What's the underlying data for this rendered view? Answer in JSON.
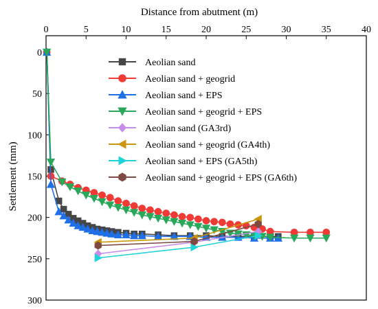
{
  "chart_data": {
    "type": "line",
    "xlabel": "Distance from abutment (m)",
    "ylabel": "Settlement (mm)",
    "xlim": [
      0,
      40
    ],
    "ylim": [
      0,
      300
    ],
    "y_inverted": true,
    "x_axis_position": "top",
    "xticks": [
      0,
      5,
      10,
      15,
      20,
      25,
      30,
      35,
      40
    ],
    "xtick_labels": [
      "0",
      "5",
      "10",
      "15",
      "20",
      "25",
      "30",
      "35",
      "40"
    ],
    "yticks": [
      0,
      50,
      100,
      150,
      200,
      250,
      300
    ],
    "ytick_labels": [
      "0",
      "50",
      "100",
      "150",
      "200",
      "250",
      "300"
    ],
    "grid": false,
    "legend_position": "top-right",
    "series": [
      {
        "name": "Aeolian sand",
        "color": "#464646",
        "marker": "square",
        "x": [
          0.1,
          0.6,
          1.6,
          2.2,
          2.8,
          3.4,
          4.0,
          4.6,
          5.2,
          5.8,
          6.4,
          7.0,
          7.6,
          8.2,
          9.0,
          10.0,
          11.0,
          12.0,
          14.0,
          16.0,
          18.0,
          20.0,
          22.0,
          24.0,
          26.0,
          28.0,
          29.0
        ],
        "y": [
          0,
          142,
          180,
          190,
          196,
          201,
          204,
          207,
          210,
          212,
          214,
          215,
          216,
          217,
          218,
          219,
          220,
          220,
          221,
          222,
          222,
          222,
          223,
          223,
          223,
          223,
          223
        ]
      },
      {
        "name": "Aeolian sand + geogrid",
        "color": "#F03A35",
        "marker": "circle",
        "x": [
          0.1,
          0.6,
          2.0,
          3.0,
          4.0,
          5.0,
          6.0,
          7.0,
          8.0,
          9.0,
          10.0,
          11.0,
          12.0,
          13.0,
          14.0,
          15.0,
          16.0,
          17.0,
          18.0,
          19.0,
          20.0,
          21.0,
          22.0,
          23.0,
          24.0,
          25.0,
          26.0,
          27.0,
          28.0,
          31.0,
          33.0,
          35.0
        ],
        "y": [
          0,
          150,
          156,
          160,
          164,
          167,
          170,
          173,
          176,
          180,
          183,
          186,
          189,
          191,
          193,
          195,
          197,
          199,
          200,
          202,
          204,
          205,
          206,
          208,
          209,
          210,
          212,
          214,
          217,
          218,
          218,
          218
        ]
      },
      {
        "name": "Aeolian sand + EPS",
        "color": "#1F6FE6",
        "marker": "triangle-up",
        "x": [
          0.1,
          0.6,
          1.6,
          2.2,
          2.8,
          3.4,
          4.0,
          4.6,
          5.2,
          5.8,
          6.4,
          7.0,
          7.6,
          8.2,
          9.0,
          10.0,
          11.0,
          12.0,
          14.0,
          16.0,
          18.0,
          20.0,
          22.0,
          24.0,
          26.0,
          28.0,
          29.0
        ],
        "y": [
          0,
          160,
          193,
          198,
          203,
          207,
          210,
          212,
          214,
          216,
          217,
          218,
          219,
          220,
          221,
          221,
          222,
          222,
          223,
          223,
          223,
          224,
          224,
          224,
          225,
          225,
          225
        ]
      },
      {
        "name": "Aeolian sand + geogrid + EPS",
        "color": "#29A85A",
        "marker": "triangle-down",
        "x": [
          0.1,
          0.6,
          2.0,
          3.0,
          4.0,
          5.0,
          6.0,
          7.0,
          8.0,
          9.0,
          10.0,
          11.0,
          12.0,
          13.0,
          14.0,
          15.0,
          16.0,
          17.0,
          18.0,
          19.0,
          20.0,
          21.0,
          22.0,
          23.0,
          24.0,
          25.0,
          26.0,
          27.0,
          28.0,
          31.0,
          33.0,
          35.0
        ],
        "y": [
          0,
          133,
          157,
          163,
          168,
          173,
          177,
          181,
          185,
          188,
          191,
          194,
          197,
          199,
          201,
          203,
          205,
          207,
          209,
          211,
          213,
          215,
          217,
          219,
          220,
          221,
          222,
          223,
          224,
          225,
          225,
          225
        ]
      },
      {
        "name": "Aeolian sand (GA3rd)",
        "color": "#C78BE8",
        "marker": "diamond",
        "x": [
          6.5,
          18.5,
          26.5
        ],
        "y": [
          244,
          230,
          217
        ]
      },
      {
        "name": "Aeolian sand + geogrid (GA4th)",
        "color": "#C9960C",
        "marker": "triangle-left",
        "x": [
          6.5,
          18.5,
          26.5
        ],
        "y": [
          230,
          225,
          202
        ]
      },
      {
        "name": "Aeolian sand + EPS (GA5th)",
        "color": "#1FD3DB",
        "marker": "triangle-right",
        "x": [
          6.5,
          18.5,
          26.5
        ],
        "y": [
          249,
          236,
          222
        ]
      },
      {
        "name": "Aeolian sand + geogrid + EPS  (GA6th)",
        "color": "#7E4A41",
        "marker": "hexagon",
        "x": [
          6.5,
          18.5,
          26.5
        ],
        "y": [
          234,
          229,
          208
        ]
      }
    ]
  }
}
